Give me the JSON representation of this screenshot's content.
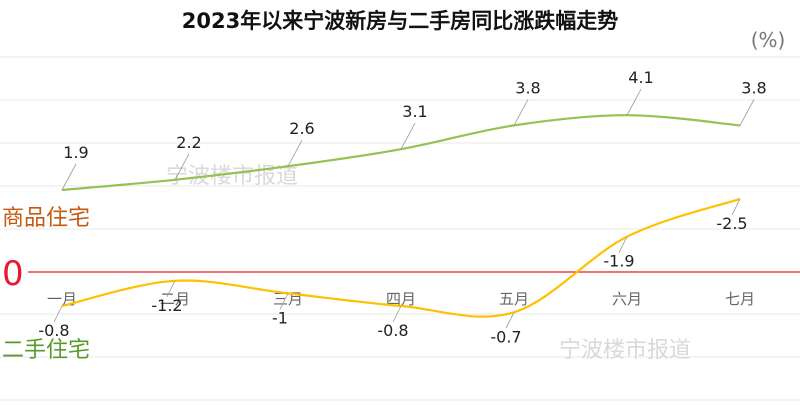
{
  "chart_data": {
    "type": "line",
    "title": "2023年以来宁波新房与二手房同比涨跌幅走势",
    "unit": "(%)",
    "categories": [
      "一月",
      "二月",
      "三月",
      "四月",
      "五月",
      "六月",
      "七月"
    ],
    "series": [
      {
        "name": "商品住宅",
        "values": [
          1.9,
          2.2,
          2.6,
          3.1,
          3.8,
          4.1,
          3.8
        ],
        "color": "#92c353",
        "label_color": "#c55a11"
      },
      {
        "name": "二手住宅",
        "values": [
          -0.8,
          -1.2,
          -1,
          -0.8,
          -0.7,
          -1.9,
          -2.5
        ],
        "color": "#ffc000",
        "label_color": "#5a9a2c"
      }
    ],
    "zero_label": "0",
    "zero_line_color": "#e8192c",
    "grid": true,
    "watermark": "宁波楼市报道"
  }
}
